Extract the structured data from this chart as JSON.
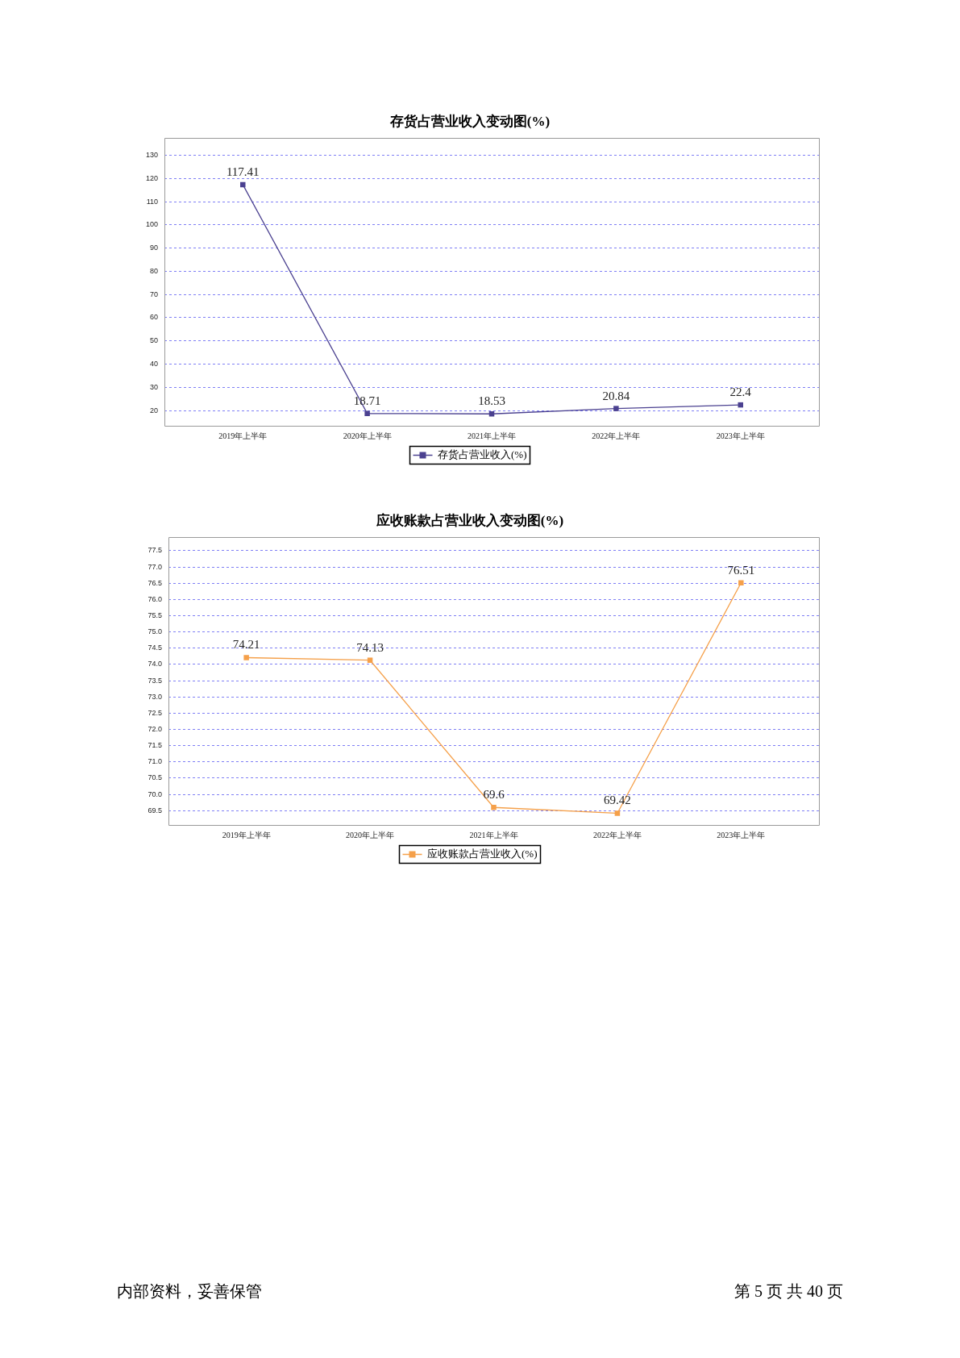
{
  "chart_data": [
    {
      "type": "line",
      "title": "存货占营业收入变动图(%)",
      "categories": [
        "2019年上半年",
        "2020年上半年",
        "2021年上半年",
        "2022年上半年",
        "2023年上半年"
      ],
      "series": [
        {
          "name": "存货占营业收入(%)",
          "color": "#4b4190",
          "values": [
            117.41,
            18.71,
            18.53,
            20.84,
            22.4
          ]
        }
      ],
      "ylim": [
        13.4,
        137.4
      ],
      "yticks": [
        20,
        30,
        40,
        50,
        60,
        70,
        80,
        90,
        100,
        110,
        120,
        130
      ],
      "grid": "y",
      "legend": "bottom",
      "marker": "square",
      "line_style": "solid",
      "data_labels": true
    },
    {
      "type": "line",
      "title": "应收账款占营业收入变动图(%)",
      "categories": [
        "2019年上半年",
        "2020年上半年",
        "2021年上半年",
        "2022年上半年",
        "2023年上半年"
      ],
      "series": [
        {
          "name": "应收账款占营业收入(%)",
          "color": "#f5a04a",
          "values": [
            74.21,
            74.13,
            69.6,
            69.42,
            76.51
          ]
        }
      ],
      "ylim": [
        69.06,
        77.91
      ],
      "yticks": [
        69.5,
        {
          "value": 70,
          "label": "70.0"
        },
        70.5,
        {
          "value": 71,
          "label": "71.0"
        },
        71.5,
        {
          "value": 72,
          "label": "72.0"
        },
        72.5,
        {
          "value": 73,
          "label": "73.0"
        },
        73.5,
        {
          "value": 74,
          "label": "74.0"
        },
        74.5,
        {
          "value": 75,
          "label": "75.0"
        },
        75.5,
        {
          "value": 76,
          "label": "76.0"
        },
        76.5,
        {
          "value": 77,
          "label": "77.0"
        },
        77.5
      ],
      "grid": "y",
      "legend": "bottom",
      "marker": "square",
      "line_style": "solid",
      "data_labels": true,
      "annotations": [
        "内部资料，妥善保管",
        "第 5 页 共 40 页"
      ]
    }
  ]
}
